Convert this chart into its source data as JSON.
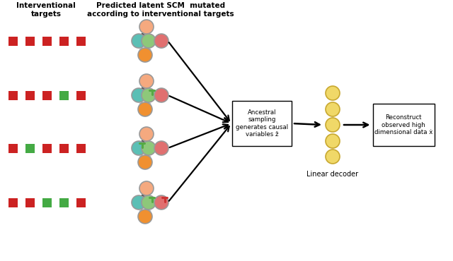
{
  "title_left": "Interventional\ntargets",
  "title_right": "Predicted latent SCM  mutated\naccording to interventional targets",
  "box1_text": "Ancestral\nsampling\ngenerates causal\nvariables ž",
  "box2_text": "Reconstruct\nobserved high\ndimensional data ẋ",
  "linear_decoder_text": "Linear decoder",
  "colors": {
    "salmon": "#F5A97F",
    "teal": "#5BBFB5",
    "light_green": "#8DC87A",
    "red_node": "#E07070",
    "orange": "#F09030",
    "red_square": "#CC2222",
    "green_square": "#44AA44",
    "yellow_node": "#F0D868",
    "intervene_green": "#55AA44",
    "intervene_red": "#CC3333"
  },
  "row_sq_colors": [
    [
      "red",
      "red",
      "red",
      "red",
      "red"
    ],
    [
      "red",
      "red",
      "red",
      "green",
      "red"
    ],
    [
      "red",
      "green",
      "red",
      "red",
      "red"
    ],
    [
      "red",
      "red",
      "green",
      "green",
      "red"
    ]
  ],
  "scm_interventions": [
    [],
    [
      1
    ],
    [
      0
    ],
    [
      1,
      2
    ]
  ]
}
